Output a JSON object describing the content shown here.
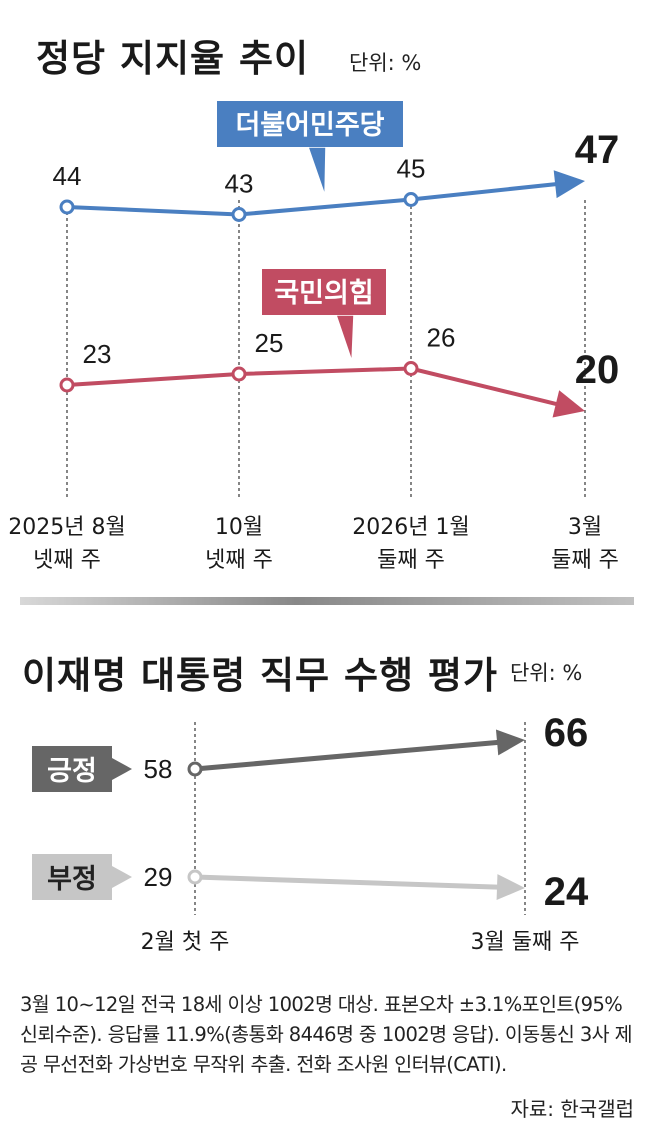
{
  "chart_data": [
    {
      "type": "line",
      "title": "정당 지지율 추이",
      "unit": "단위: %",
      "categories": [
        [
          "2025년 8월",
          "넷째 주"
        ],
        [
          "10월",
          "넷째 주"
        ],
        [
          "2026년 1월",
          "둘째 주"
        ],
        [
          "3월",
          "둘째 주"
        ]
      ],
      "series": [
        {
          "name": "더불어민주당",
          "color": "#4a7fc1",
          "values": [
            44,
            43,
            45,
            47
          ]
        },
        {
          "name": "국민의힘",
          "color": "#c14c62",
          "values": [
            23,
            25,
            26,
            20
          ]
        }
      ]
    },
    {
      "type": "line",
      "title": "이재명 대통령 직무 수행 평가",
      "unit": "단위: %",
      "categories": [
        "2월 첫 주",
        "3월 둘째 주"
      ],
      "series": [
        {
          "name": "긍정",
          "color": "#666666",
          "values": [
            58,
            66
          ]
        },
        {
          "name": "부정",
          "color": "#c6c6c6",
          "values": [
            29,
            24
          ]
        }
      ]
    }
  ],
  "note": "3월 10∼12일 전국 18세 이상 1002명 대상. 표본오차 ±3.1%포인트(95% 신뢰수준). 응답률 11.9%(총통화 8446명 중 1002명 응답). 이동통신 3사 제공 무선전화 가상번호 무작위 추출. 전화 조사원 인터뷰(CATI).",
  "source": "자료: 한국갤럽"
}
